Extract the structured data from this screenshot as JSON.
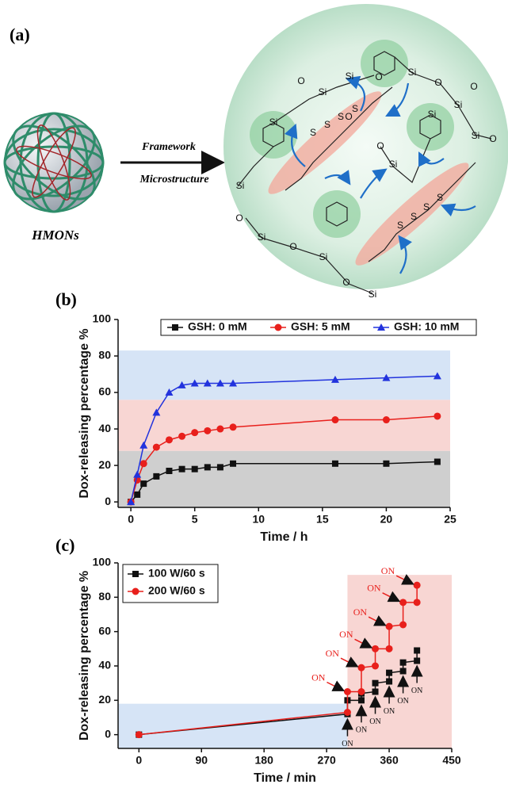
{
  "diagram": {
    "panel_label": "(a)",
    "arrow_top": "Framework",
    "arrow_bottom": "Microstructure",
    "caption": "HMONs",
    "atoms": [
      "Si",
      "O",
      "Si",
      "O",
      "Si",
      "O",
      "Si",
      "O",
      "Si",
      "O",
      "Si",
      "O",
      "Si",
      "O",
      "Si",
      "O",
      "Si",
      "O",
      "Si",
      "Si",
      "O",
      "Si",
      "S",
      "S",
      "S",
      "S",
      "S",
      "S",
      "S",
      "S"
    ]
  },
  "chart_data": [
    {
      "type": "line",
      "panel_label": "(b)",
      "xlabel": "Time / h",
      "ylabel": "Dox-releasing percentage %",
      "xlim": [
        -1,
        25
      ],
      "ylim": [
        -3,
        100
      ],
      "xticks": [
        0,
        5,
        10,
        15,
        20,
        25
      ],
      "yticks": [
        0,
        20,
        40,
        60,
        80,
        100
      ],
      "legend": "top",
      "shaded_regions": [
        {
          "y_range": [
            -3,
            28
          ],
          "color": "#cfcfcf"
        },
        {
          "y_range": [
            28,
            56
          ],
          "color": "#f8d6d3"
        },
        {
          "y_range": [
            56,
            83
          ],
          "color": "#d6e4f6"
        }
      ],
      "series": [
        {
          "name": "GSH: 0 mM",
          "color": "#111111",
          "marker": "square",
          "x": [
            0,
            0.5,
            1,
            2,
            3,
            4,
            5,
            6,
            7,
            8,
            16,
            20,
            24
          ],
          "values": [
            0,
            4,
            10,
            14,
            17,
            18,
            18,
            19,
            19,
            21,
            21,
            21,
            22
          ]
        },
        {
          "name": "GSH: 5 mM",
          "color": "#e8201c",
          "marker": "circle",
          "x": [
            0,
            0.5,
            1,
            2,
            3,
            4,
            5,
            6,
            7,
            8,
            16,
            20,
            24
          ],
          "values": [
            0,
            12,
            21,
            30,
            34,
            36,
            38,
            39,
            40,
            41,
            45,
            45,
            47
          ]
        },
        {
          "name": "GSH: 10 mM",
          "color": "#2233dd",
          "marker": "triangle",
          "x": [
            0,
            0.5,
            1,
            2,
            3,
            4,
            5,
            6,
            7,
            8,
            16,
            20,
            24
          ],
          "values": [
            0,
            15,
            31,
            49,
            60,
            64,
            65,
            65,
            65,
            65,
            67,
            68,
            69
          ]
        }
      ]
    },
    {
      "type": "line",
      "panel_label": "(c)",
      "xlabel": "Time / min",
      "ylabel": "Dox-releasing percentage %",
      "xlim": [
        -30,
        450
      ],
      "ylim": [
        -8,
        100
      ],
      "xticks": [
        0,
        90,
        180,
        270,
        360,
        450
      ],
      "yticks": [
        0,
        20,
        40,
        60,
        80,
        100
      ],
      "legend": "upper left",
      "shaded_regions": [
        {
          "x_range": [
            -30,
            300
          ],
          "y_range": [
            -8,
            18
          ],
          "color": "#d6e4f6"
        },
        {
          "x_range": [
            300,
            450
          ],
          "y_range": [
            -8,
            93
          ],
          "color": "#f8d6d3"
        }
      ],
      "series": [
        {
          "name": "100 W/60 s",
          "color": "#111111",
          "marker": "square",
          "x": [
            0,
            300,
            300,
            320,
            320,
            340,
            340,
            360,
            360,
            380,
            380,
            400,
            400
          ],
          "values": [
            0,
            12,
            20,
            20,
            24,
            25,
            30,
            31,
            36,
            37,
            42,
            43,
            49
          ]
        },
        {
          "name": "200 W/60 s",
          "color": "#e8201c",
          "marker": "circle",
          "x": [
            0,
            300,
            300,
            320,
            320,
            340,
            340,
            360,
            360,
            380,
            380,
            400,
            400
          ],
          "values": [
            0,
            13,
            25,
            25,
            39,
            40,
            50,
            50,
            63,
            64,
            77,
            77,
            87
          ]
        }
      ],
      "annotations": [
        {
          "text": "ON",
          "color": "#e8201c"
        },
        {
          "text": "ON",
          "color": "#e8201c"
        },
        {
          "text": "ON",
          "color": "#e8201c"
        },
        {
          "text": "ON",
          "color": "#e8201c"
        },
        {
          "text": "ON",
          "color": "#e8201c"
        },
        {
          "text": "ON",
          "color": "#e8201c"
        },
        {
          "text": "ON",
          "color": "#111111"
        },
        {
          "text": "ON",
          "color": "#111111"
        },
        {
          "text": "ON",
          "color": "#111111"
        },
        {
          "text": "ON",
          "color": "#111111"
        },
        {
          "text": "ON",
          "color": "#111111"
        },
        {
          "text": "ON",
          "color": "#111111"
        }
      ]
    }
  ]
}
